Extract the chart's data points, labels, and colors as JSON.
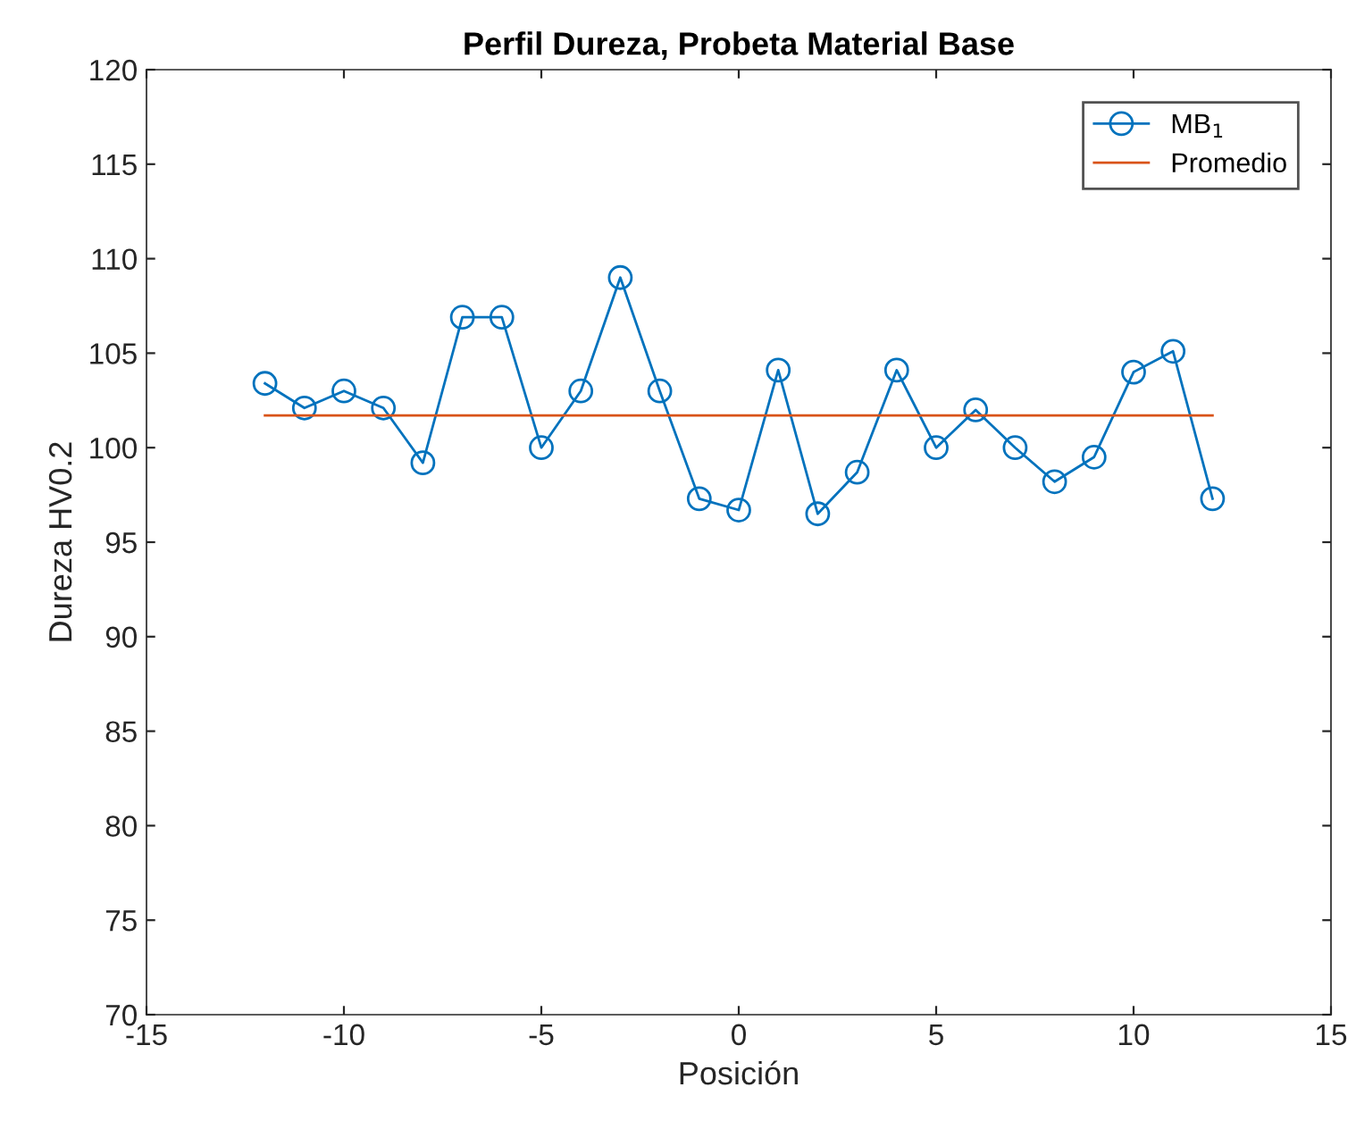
{
  "chart_data": {
    "type": "line",
    "title": "Perfil Dureza, Probeta Material Base",
    "xlabel": "Posición",
    "ylabel": "Dureza HV0.2",
    "xlim": [
      -15,
      15
    ],
    "xticks": [
      -15,
      -10,
      -5,
      0,
      5,
      10,
      15
    ],
    "ylim": [
      70,
      120
    ],
    "yticks": [
      70,
      75,
      80,
      85,
      90,
      95,
      100,
      105,
      110,
      115,
      120
    ],
    "grid": false,
    "legend": "top right",
    "series": [
      {
        "name": "MB$_{1}$",
        "color": "#0072bd",
        "marker": "circle",
        "x": [
          -12,
          -11,
          -10,
          -9,
          -8,
          -7,
          -6,
          -5,
          -4,
          -3,
          -2,
          -1,
          0,
          1,
          2,
          3,
          4,
          5,
          6,
          7,
          8,
          9,
          10,
          11,
          12
        ],
        "values": [
          103.4,
          102.1,
          103.0,
          102.1,
          99.2,
          106.9,
          106.9,
          100.0,
          103.0,
          109.0,
          103.0,
          97.3,
          96.7,
          104.1,
          96.5,
          98.7,
          104.1,
          100.0,
          102.0,
          100.0,
          98.2,
          99.5,
          104.0,
          105.1,
          97.3
        ]
      },
      {
        "name": "Promedio",
        "color": "#d95319",
        "marker": "none",
        "x": [
          -12,
          12
        ],
        "values": [
          101.7,
          101.7
        ]
      }
    ]
  }
}
